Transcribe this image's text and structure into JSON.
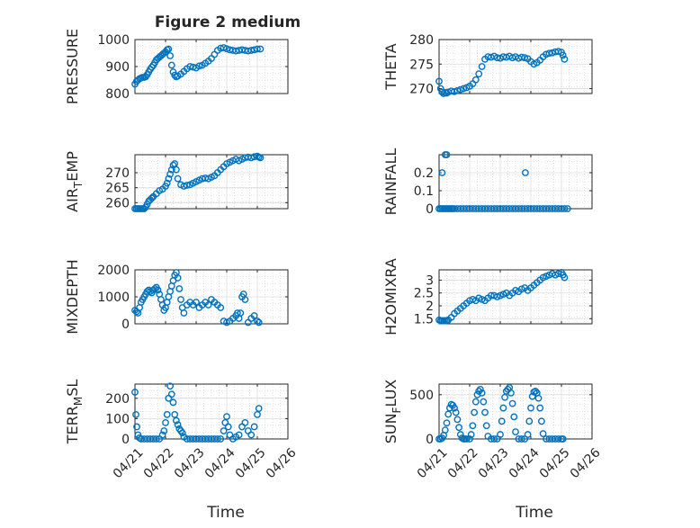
{
  "figure": {
    "title": "Figure 2 medium",
    "xlabel": "Time"
  },
  "colors": {
    "marker": "#0072BD",
    "axis": "#262626",
    "grid": "#cccccc"
  },
  "chart_data": [
    {
      "type": "scatter",
      "ylabel": "PRESSURE",
      "ylim": [
        800,
        1000
      ],
      "yticks": [
        800,
        900,
        1000
      ],
      "xlim": [
        "04/21",
        "04/26"
      ],
      "xticks": [
        "04/21",
        "04/22",
        "04/23",
        "04/24",
        "04/25",
        "04/26"
      ],
      "show_xticklabels": false,
      "x": [
        0.0,
        0.05,
        0.1,
        0.15,
        0.2,
        0.25,
        0.3,
        0.35,
        0.4,
        0.45,
        0.5,
        0.55,
        0.6,
        0.65,
        0.7,
        0.75,
        0.8,
        0.85,
        0.9,
        0.95,
        1.0,
        1.05,
        1.1,
        1.15,
        1.2,
        1.25,
        1.3,
        1.35,
        1.4,
        1.5,
        1.6,
        1.7,
        1.8,
        1.9,
        2.0,
        2.1,
        2.2,
        2.3,
        2.4,
        2.5,
        2.6,
        2.7,
        2.8,
        2.9,
        3.0,
        3.1,
        3.2,
        3.3,
        3.4,
        3.5,
        3.6,
        3.7,
        3.8,
        3.9,
        4.0,
        4.1
      ],
      "y": [
        835,
        845,
        850,
        855,
        858,
        860,
        860,
        862,
        870,
        880,
        890,
        898,
        905,
        915,
        925,
        930,
        935,
        940,
        945,
        950,
        955,
        962,
        965,
        940,
        905,
        880,
        868,
        862,
        865,
        872,
        882,
        892,
        900,
        898,
        895,
        902,
        905,
        912,
        920,
        930,
        945,
        960,
        968,
        970,
        966,
        962,
        960,
        958,
        960,
        962,
        960,
        958,
        960,
        962,
        965,
        965
      ]
    },
    {
      "type": "scatter",
      "ylabel": "THETA",
      "ylim": [
        269,
        280
      ],
      "yticks": [
        270,
        275,
        280
      ],
      "xlim": [
        "04/21",
        "04/26"
      ],
      "xticks": [
        "04/21",
        "04/22",
        "04/23",
        "04/24",
        "04/25",
        "04/26"
      ],
      "show_xticklabels": false,
      "x": [
        0.0,
        0.05,
        0.1,
        0.15,
        0.2,
        0.25,
        0.3,
        0.4,
        0.5,
        0.6,
        0.7,
        0.8,
        0.9,
        1.0,
        1.1,
        1.2,
        1.3,
        1.4,
        1.5,
        1.6,
        1.7,
        1.8,
        1.9,
        2.0,
        2.1,
        2.2,
        2.3,
        2.4,
        2.5,
        2.6,
        2.7,
        2.8,
        2.9,
        3.0,
        3.1,
        3.2,
        3.3,
        3.4,
        3.5,
        3.6,
        3.7,
        3.8,
        3.9,
        4.0,
        4.05,
        4.1
      ],
      "y": [
        271.5,
        270.0,
        269.3,
        269.0,
        269.2,
        269.1,
        269.3,
        269.5,
        269.4,
        269.6,
        269.8,
        270.0,
        270.2,
        270.5,
        271.0,
        271.8,
        273.0,
        274.5,
        276.0,
        276.5,
        276.4,
        276.6,
        276.3,
        276.2,
        276.5,
        276.4,
        276.6,
        276.3,
        276.5,
        276.2,
        276.4,
        276.3,
        276.1,
        275.5,
        275.0,
        275.3,
        275.8,
        276.5,
        277.0,
        277.2,
        277.3,
        277.5,
        277.6,
        277.4,
        276.8,
        276.0
      ]
    },
    {
      "type": "scatter",
      "ylabel": "AIR",
      "ylabel_sub": "T",
      "ylabel_suffix": "EMP",
      "ylim": [
        258,
        276
      ],
      "yticks": [
        260,
        265,
        270
      ],
      "xlim": [
        "04/21",
        "04/26"
      ],
      "xticks": [
        "04/21",
        "04/22",
        "04/23",
        "04/24",
        "04/25",
        "04/26"
      ],
      "show_xticklabels": false,
      "x": [
        0.0,
        0.05,
        0.1,
        0.15,
        0.2,
        0.25,
        0.3,
        0.35,
        0.4,
        0.45,
        0.5,
        0.55,
        0.6,
        0.7,
        0.8,
        0.9,
        1.0,
        1.05,
        1.1,
        1.15,
        1.2,
        1.25,
        1.3,
        1.35,
        1.4,
        1.5,
        1.6,
        1.7,
        1.8,
        1.9,
        2.0,
        2.1,
        2.2,
        2.3,
        2.4,
        2.5,
        2.6,
        2.7,
        2.8,
        2.9,
        3.0,
        3.1,
        3.2,
        3.3,
        3.4,
        3.5,
        3.6,
        3.7,
        3.8,
        3.9,
        4.0,
        4.05,
        4.1
      ],
      "y": [
        258.0,
        258.0,
        258.0,
        258.0,
        258.0,
        258.0,
        258.0,
        258.5,
        259.5,
        260.5,
        261.0,
        261.5,
        262.0,
        263.0,
        264.0,
        264.5,
        265.5,
        266.5,
        268.0,
        269.5,
        271.0,
        272.5,
        273.0,
        271.0,
        268.0,
        266.0,
        265.5,
        265.8,
        266.0,
        266.5,
        267.0,
        267.5,
        268.0,
        268.2,
        268.0,
        268.5,
        269.0,
        270.0,
        271.0,
        272.0,
        273.0,
        273.5,
        274.0,
        274.5,
        274.0,
        274.5,
        275.0,
        275.2,
        275.0,
        275.3,
        275.5,
        275.2,
        275.0
      ]
    },
    {
      "type": "scatter",
      "ylabel": "RAINFALL",
      "ylim": [
        0,
        0.3
      ],
      "yticks": [
        0,
        0.1,
        0.2
      ],
      "xlim": [
        "04/21",
        "04/26"
      ],
      "xticks": [
        "04/21",
        "04/22",
        "04/23",
        "04/24",
        "04/25",
        "04/26"
      ],
      "show_xticklabels": false,
      "x": [
        0.0,
        0.05,
        0.1,
        0.15,
        0.2,
        0.25,
        0.3,
        0.35,
        0.4,
        0.45,
        0.5,
        0.6,
        0.7,
        0.8,
        0.9,
        1.0,
        1.1,
        1.2,
        1.3,
        1.4,
        1.5,
        1.6,
        1.7,
        1.8,
        1.9,
        2.0,
        2.1,
        2.2,
        2.3,
        2.4,
        2.5,
        2.6,
        2.7,
        2.8,
        2.9,
        3.0,
        3.1,
        3.2,
        3.3,
        3.4,
        3.5,
        3.6,
        3.7,
        3.8,
        3.9,
        4.0,
        4.1,
        4.2,
        0.1,
        0.2,
        0.25,
        2.82
      ],
      "y": [
        0,
        0,
        0,
        0,
        0,
        0,
        0,
        0,
        0,
        0,
        0,
        0,
        0,
        0,
        0,
        0,
        0,
        0,
        0,
        0,
        0,
        0,
        0,
        0,
        0,
        0,
        0,
        0,
        0,
        0,
        0,
        0,
        0,
        0,
        0,
        0,
        0,
        0,
        0,
        0,
        0,
        0,
        0,
        0,
        0,
        0,
        0,
        0,
        0.2,
        0.3,
        0.3,
        0.2
      ]
    },
    {
      "type": "scatter",
      "ylabel": "MIXDEPTH",
      "ylim": [
        0,
        2000
      ],
      "yticks": [
        0,
        1000,
        2000
      ],
      "xlim": [
        "04/21",
        "04/26"
      ],
      "xticks": [
        "04/21",
        "04/22",
        "04/23",
        "04/24",
        "04/25",
        "04/26"
      ],
      "show_xticklabels": false,
      "x": [
        0.0,
        0.05,
        0.1,
        0.15,
        0.2,
        0.25,
        0.3,
        0.35,
        0.4,
        0.45,
        0.5,
        0.55,
        0.6,
        0.65,
        0.7,
        0.75,
        0.8,
        0.85,
        0.9,
        0.95,
        1.0,
        1.05,
        1.1,
        1.15,
        1.2,
        1.25,
        1.3,
        1.35,
        1.4,
        1.45,
        1.5,
        1.55,
        1.6,
        1.7,
        1.8,
        1.9,
        2.0,
        2.1,
        2.2,
        2.3,
        2.4,
        2.5,
        2.6,
        2.7,
        2.8,
        2.9,
        3.0,
        3.1,
        3.2,
        3.3,
        3.35,
        3.4,
        3.45,
        3.5,
        3.55,
        3.6,
        3.7,
        3.8,
        3.9,
        4.0,
        4.05
      ],
      "y": [
        500,
        450,
        400,
        600,
        800,
        900,
        1000,
        1100,
        1200,
        1250,
        1200,
        1150,
        1250,
        1300,
        1350,
        1250,
        1100,
        900,
        700,
        500,
        600,
        800,
        1000,
        1200,
        1400,
        1600,
        1800,
        1900,
        1700,
        1300,
        900,
        600,
        400,
        700,
        800,
        700,
        800,
        600,
        700,
        800,
        700,
        900,
        800,
        700,
        600,
        100,
        50,
        100,
        200,
        300,
        400,
        200,
        400,
        1000,
        1100,
        900,
        50,
        200,
        300,
        100,
        50
      ]
    },
    {
      "type": "scatter",
      "ylabel": "H2OMIXRA",
      "ylim": [
        1.3,
        3.4
      ],
      "yticks": [
        1.5,
        2,
        2.5,
        3
      ],
      "yticklabels": [
        "1.5",
        "2",
        "2.5",
        "3"
      ],
      "xlim": [
        "04/21",
        "04/26"
      ],
      "xticks": [
        "04/21",
        "04/22",
        "04/23",
        "04/24",
        "04/25",
        "04/26"
      ],
      "show_xticklabels": false,
      "x": [
        0.0,
        0.05,
        0.1,
        0.15,
        0.2,
        0.25,
        0.3,
        0.4,
        0.5,
        0.6,
        0.7,
        0.8,
        0.9,
        1.0,
        1.1,
        1.2,
        1.3,
        1.4,
        1.5,
        1.6,
        1.7,
        1.8,
        1.9,
        2.0,
        2.1,
        2.2,
        2.3,
        2.4,
        2.5,
        2.6,
        2.7,
        2.8,
        2.9,
        3.0,
        3.1,
        3.2,
        3.3,
        3.4,
        3.5,
        3.6,
        3.7,
        3.8,
        3.9,
        4.0,
        4.05,
        4.1
      ],
      "y": [
        1.45,
        1.42,
        1.42,
        1.42,
        1.42,
        1.42,
        1.45,
        1.55,
        1.7,
        1.8,
        1.9,
        2.0,
        2.1,
        2.2,
        2.25,
        2.2,
        2.3,
        2.25,
        2.2,
        2.3,
        2.4,
        2.4,
        2.35,
        2.4,
        2.45,
        2.5,
        2.4,
        2.5,
        2.6,
        2.55,
        2.65,
        2.7,
        2.6,
        2.7,
        2.8,
        2.9,
        3.0,
        3.1,
        3.15,
        3.2,
        3.25,
        3.2,
        3.25,
        3.3,
        3.2,
        3.1
      ]
    },
    {
      "type": "scatter",
      "ylabel": "TERR",
      "ylabel_sub": "M",
      "ylabel_suffix": "SL",
      "ylim": [
        0,
        270
      ],
      "yticks": [
        0,
        100,
        200
      ],
      "xlim": [
        "04/21",
        "04/26"
      ],
      "xticks": [
        "04/21",
        "04/22",
        "04/23",
        "04/24",
        "04/25",
        "04/26"
      ],
      "xticklabels": [
        "04/21",
        "04/22",
        "04/23",
        "04/24",
        "04/25",
        "04/26"
      ],
      "show_xticklabels": true,
      "x": [
        0.0,
        0.03,
        0.06,
        0.1,
        0.15,
        0.2,
        0.3,
        0.4,
        0.5,
        0.6,
        0.7,
        0.8,
        0.9,
        0.95,
        1.0,
        1.05,
        1.1,
        1.15,
        1.2,
        1.25,
        1.3,
        1.35,
        1.4,
        1.45,
        1.5,
        1.55,
        1.6,
        1.7,
        1.8,
        1.9,
        2.0,
        2.1,
        2.2,
        2.3,
        2.4,
        2.5,
        2.6,
        2.7,
        2.8,
        2.9,
        2.95,
        3.0,
        3.05,
        3.1,
        3.2,
        3.3,
        3.4,
        3.5,
        3.6,
        3.7,
        3.8,
        3.9,
        4.0,
        4.05
      ],
      "y": [
        230,
        120,
        60,
        20,
        5,
        0,
        0,
        0,
        0,
        0,
        0,
        0,
        20,
        40,
        80,
        120,
        200,
        260,
        220,
        180,
        120,
        90,
        70,
        50,
        40,
        30,
        10,
        0,
        0,
        0,
        0,
        0,
        0,
        0,
        0,
        0,
        0,
        0,
        0,
        40,
        80,
        110,
        60,
        20,
        0,
        10,
        20,
        60,
        80,
        40,
        20,
        60,
        120,
        150
      ]
    },
    {
      "type": "scatter",
      "ylabel": "SUN",
      "ylabel_sub": "F",
      "ylabel_suffix": "LUX",
      "ylim": [
        0,
        620
      ],
      "yticks": [
        0,
        500
      ],
      "xlim": [
        "04/21",
        "04/26"
      ],
      "xticks": [
        "04/21",
        "04/22",
        "04/23",
        "04/24",
        "04/25",
        "04/26"
      ],
      "xticklabels": [
        "04/21",
        "04/22",
        "04/23",
        "04/24",
        "04/25",
        "04/26"
      ],
      "show_xticklabels": true,
      "x": [
        0.0,
        0.05,
        0.1,
        0.15,
        0.2,
        0.25,
        0.3,
        0.35,
        0.4,
        0.45,
        0.5,
        0.55,
        0.6,
        0.65,
        0.7,
        0.75,
        0.8,
        0.85,
        0.9,
        1.0,
        1.05,
        1.1,
        1.15,
        1.2,
        1.25,
        1.3,
        1.35,
        1.4,
        1.45,
        1.5,
        1.55,
        1.6,
        1.7,
        1.8,
        1.9,
        2.0,
        2.05,
        2.1,
        2.15,
        2.2,
        2.25,
        2.3,
        2.35,
        2.4,
        2.45,
        2.5,
        2.6,
        2.7,
        2.8,
        2.9,
        2.95,
        3.0,
        3.05,
        3.1,
        3.15,
        3.2,
        3.25,
        3.3,
        3.35,
        3.4,
        3.5,
        3.6,
        3.7,
        3.8,
        3.9,
        4.0,
        4.05
      ],
      "y": [
        0,
        0,
        10,
        40,
        100,
        180,
        280,
        350,
        390,
        380,
        350,
        300,
        220,
        130,
        50,
        10,
        0,
        0,
        0,
        0,
        50,
        150,
        300,
        420,
        500,
        540,
        560,
        520,
        420,
        300,
        150,
        30,
        0,
        0,
        0,
        50,
        200,
        350,
        470,
        540,
        560,
        580,
        520,
        400,
        250,
        80,
        0,
        0,
        0,
        50,
        200,
        350,
        480,
        530,
        540,
        520,
        460,
        350,
        200,
        60,
        0,
        0,
        0,
        0,
        0,
        0,
        0
      ]
    }
  ]
}
